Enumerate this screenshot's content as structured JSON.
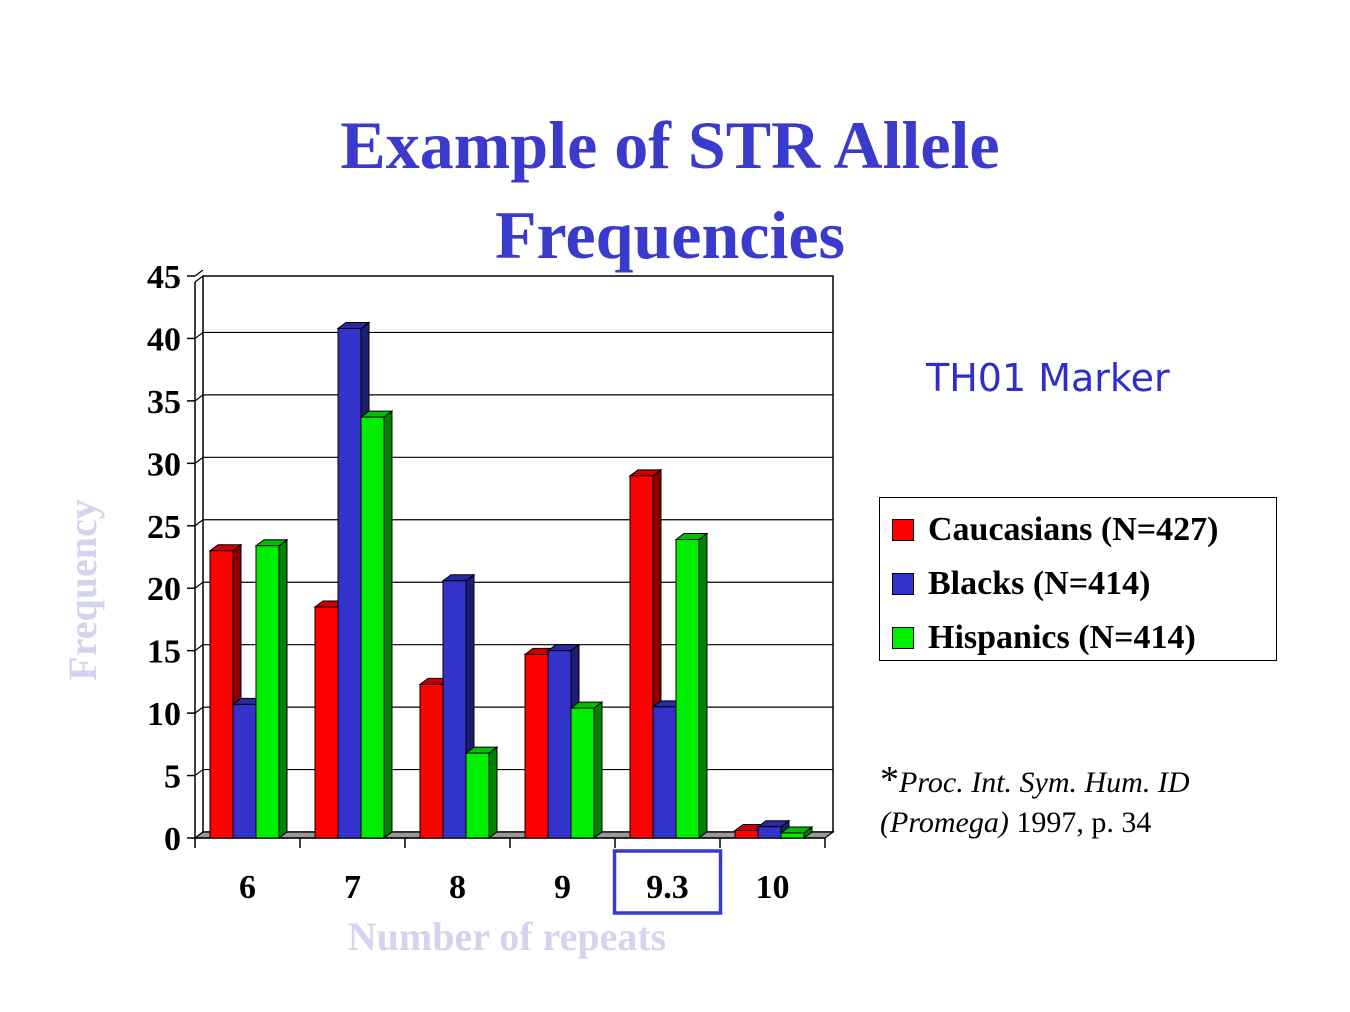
{
  "slide": {
    "title_line1": "Example of STR Allele",
    "title_line2": "Frequencies",
    "marker_label": "TH01 Marker",
    "citation": {
      "asterisk": "*",
      "italic_part1": "Proc. Int. Sym. Hum. ID",
      "italic_part2": "(Promega)",
      "plain_part": " 1997, p. 34"
    },
    "highlighted_category": "9.3",
    "colors": {
      "title": "#3a3acc",
      "axis_label": "#d4d4f0",
      "highlight_box": "#3a3acc"
    }
  },
  "chart_data": {
    "type": "bar",
    "xlabel": "Number of repeats",
    "ylabel": "Frequency",
    "ylim": [
      0,
      45
    ],
    "yticks": [
      0,
      5,
      10,
      15,
      20,
      25,
      30,
      35,
      40,
      45
    ],
    "categories": [
      "6",
      "7",
      "8",
      "9",
      "9.3",
      "10"
    ],
    "grid": true,
    "legend_position": "right",
    "series": [
      {
        "name": "Caucasians (N=427)",
        "color": "#ff0000",
        "values": [
          23,
          18.5,
          12.3,
          14.7,
          29,
          0.6
        ]
      },
      {
        "name": "Blacks (N=414)",
        "color": "#3333cc",
        "values": [
          10.7,
          40.8,
          20.6,
          15,
          10.5,
          0.9
        ]
      },
      {
        "name": "Hispanics (N=414)",
        "color": "#00ee00",
        "values": [
          23.4,
          33.7,
          6.8,
          10.4,
          23.9,
          0.4
        ]
      }
    ]
  }
}
